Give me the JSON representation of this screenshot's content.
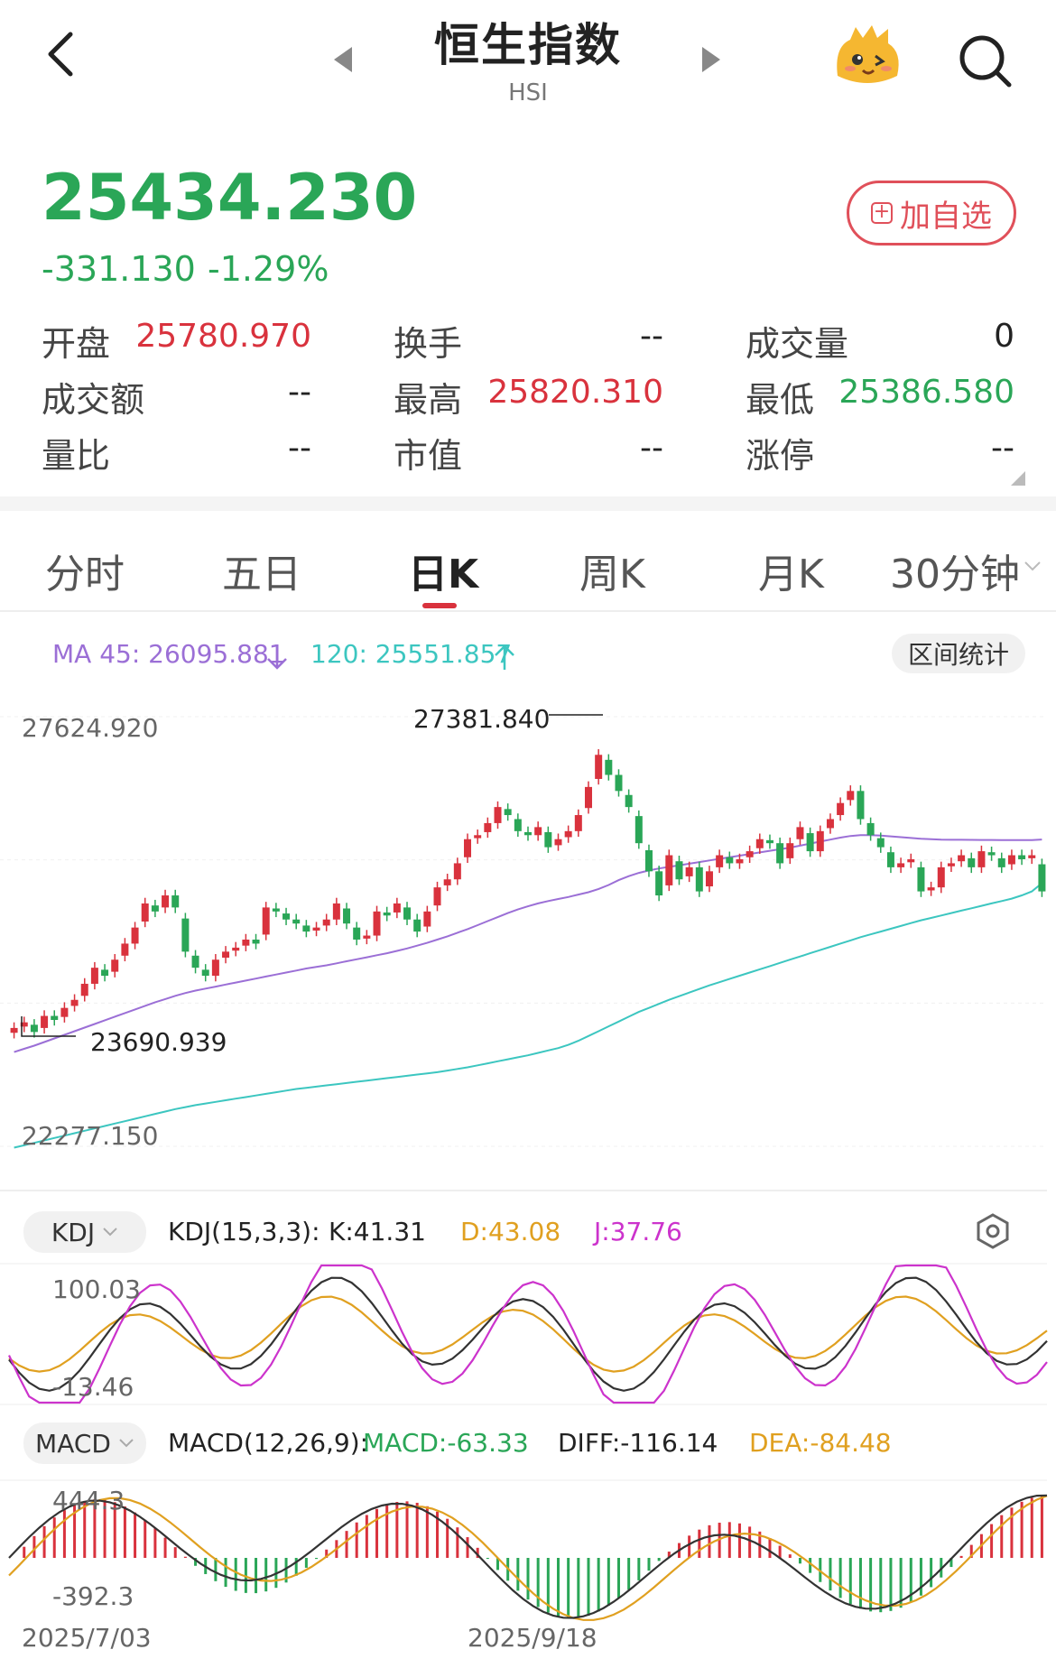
{
  "header": {
    "title": "恒生指数",
    "subtitle": "HSI"
  },
  "quote": {
    "price": "25434.230",
    "change": "-331.130",
    "change_pct": "-1.29%",
    "add_label": "加自选"
  },
  "stats": [
    {
      "label": "开盘",
      "value": "25780.970",
      "color": "red"
    },
    {
      "label": "换手",
      "value": "--",
      "color": "dark"
    },
    {
      "label": "成交量",
      "value": "0",
      "color": "dark"
    },
    {
      "label": "成交额",
      "value": "--",
      "color": "dark"
    },
    {
      "label": "最高",
      "value": "25820.310",
      "color": "red"
    },
    {
      "label": "最低",
      "value": "25386.580",
      "color": "green"
    },
    {
      "label": "量比",
      "value": "--",
      "color": "dark"
    },
    {
      "label": "市值",
      "value": "--",
      "color": "dark"
    },
    {
      "label": "涨停",
      "value": "--",
      "color": "dark"
    }
  ],
  "tabs": [
    "分时",
    "五日",
    "日K",
    "周K",
    "月K",
    "30分钟"
  ],
  "active_tab": 2,
  "ma": {
    "ma45": "MA 45: 26095.881",
    "ma120": "120: 25551.857",
    "stats_btn": "区间统计"
  },
  "kline": {
    "y_top": "27624.920",
    "y_bottom": "22277.150",
    "high_label": "27381.840",
    "low_label": "23690.939"
  },
  "kdj": {
    "selector": "KDJ",
    "params": "KDJ(15,3,3):",
    "k": "K:41.31",
    "d": "D:43.08",
    "j": "J:37.76",
    "y_top": "100.03",
    "y_bottom": "-13.46"
  },
  "macd": {
    "selector": "MACD",
    "params": "MACD(12,26,9):",
    "macd": "MACD:-63.33",
    "diff": "DIFF:-116.14",
    "dea": "DEA:-84.48",
    "y_top": "444.3",
    "y_bottom": "-392.3"
  },
  "dates": {
    "start": "2025/7/03",
    "mid": "2025/9/18"
  },
  "colors": {
    "up": "#d9323d",
    "down": "#2aa657",
    "ma45": "#9b6fd6",
    "ma120": "#3cc6c0",
    "kdj_k": "#333333",
    "kdj_d": "#e0a020",
    "kdj_j": "#cc33cc"
  },
  "chart_data": {
    "type": "candlestick",
    "closes": [
      23750,
      23820,
      23700,
      23900,
      23850,
      24000,
      24100,
      24300,
      24500,
      24400,
      24600,
      24800,
      25000,
      25300,
      25200,
      25400,
      25250,
      24700,
      24500,
      24400,
      24600,
      24700,
      24750,
      24850,
      24800,
      25250,
      25200,
      25100,
      25050,
      24950,
      25000,
      25100,
      25300,
      25050,
      24850,
      24900,
      25200,
      25150,
      25300,
      25100,
      24950,
      25200,
      25500,
      25600,
      25800,
      26100,
      26150,
      26300,
      26500,
      26400,
      26200,
      26150,
      26250,
      26000,
      26100,
      26200,
      26400,
      26750,
      27150,
      26900,
      26700,
      26500,
      26050,
      25700,
      25400,
      25900,
      25600,
      25750,
      25450,
      25700,
      25900,
      25800,
      25850,
      25950,
      26100,
      26050,
      25800,
      26050,
      26250,
      25950,
      26200,
      26350,
      26550,
      26700,
      26350,
      26150,
      26000,
      25750,
      25800,
      25850,
      25450,
      25500,
      25750,
      25800,
      25900,
      25750,
      25950,
      25900,
      25750,
      25900,
      25850,
      25900,
      25450
    ],
    "ma45": [
      23450,
      23490,
      23530,
      23575,
      23620,
      23665,
      23710,
      23755,
      23800,
      23845,
      23890,
      23935,
      23980,
      24025,
      24070,
      24110,
      24150,
      24185,
      24215,
      24240,
      24265,
      24290,
      24315,
      24340,
      24365,
      24390,
      24415,
      24440,
      24465,
      24490,
      24510,
      24530,
      24555,
      24580,
      24605,
      24630,
      24655,
      24680,
      24710,
      24740,
      24775,
      24810,
      24850,
      24890,
      24935,
      24980,
      25030,
      25080,
      25130,
      25180,
      25225,
      25265,
      25300,
      25330,
      25355,
      25380,
      25410,
      25440,
      25480,
      25530,
      25590,
      25640,
      25680,
      25710,
      25735,
      25755,
      25775,
      25795,
      25815,
      25835,
      25855,
      25875,
      25895,
      25915,
      25935,
      25955,
      25975,
      25995,
      26020,
      26045,
      26070,
      26095,
      26120,
      26140,
      26150,
      26150,
      26145,
      26135,
      26125,
      26115,
      26105,
      26100,
      26095,
      26093,
      26092,
      26091,
      26090,
      26090,
      26089,
      26089,
      26088,
      26088,
      26096
    ],
    "ma120": [
      22260,
      22290,
      22320,
      22350,
      22380,
      22410,
      22440,
      22470,
      22500,
      22530,
      22560,
      22590,
      22620,
      22650,
      22680,
      22710,
      22740,
      22765,
      22790,
      22810,
      22830,
      22850,
      22870,
      22890,
      22910,
      22930,
      22950,
      22970,
      22990,
      23005,
      23020,
      23035,
      23050,
      23065,
      23080,
      23095,
      23110,
      23125,
      23140,
      23155,
      23170,
      23185,
      23200,
      23220,
      23240,
      23260,
      23285,
      23310,
      23335,
      23360,
      23385,
      23410,
      23440,
      23470,
      23500,
      23540,
      23590,
      23650,
      23710,
      23770,
      23830,
      23890,
      23950,
      24000,
      24050,
      24100,
      24145,
      24190,
      24235,
      24280,
      24320,
      24360,
      24400,
      24440,
      24480,
      24520,
      24560,
      24600,
      24640,
      24680,
      24720,
      24760,
      24800,
      24840,
      24880,
      24915,
      24950,
      24985,
      25020,
      25055,
      25090,
      25120,
      25150,
      25180,
      25210,
      25240,
      25270,
      25300,
      25330,
      25360,
      25400,
      25450,
      25552
    ],
    "ylim": [
      22277.15,
      27624.92
    ],
    "kdj": {
      "ylim": [
        -13.46,
        100.03
      ]
    },
    "macd": {
      "ylim": [
        -392.3,
        444.3
      ]
    },
    "x_labels": [
      "2025/7/03",
      "2025/9/18"
    ]
  }
}
